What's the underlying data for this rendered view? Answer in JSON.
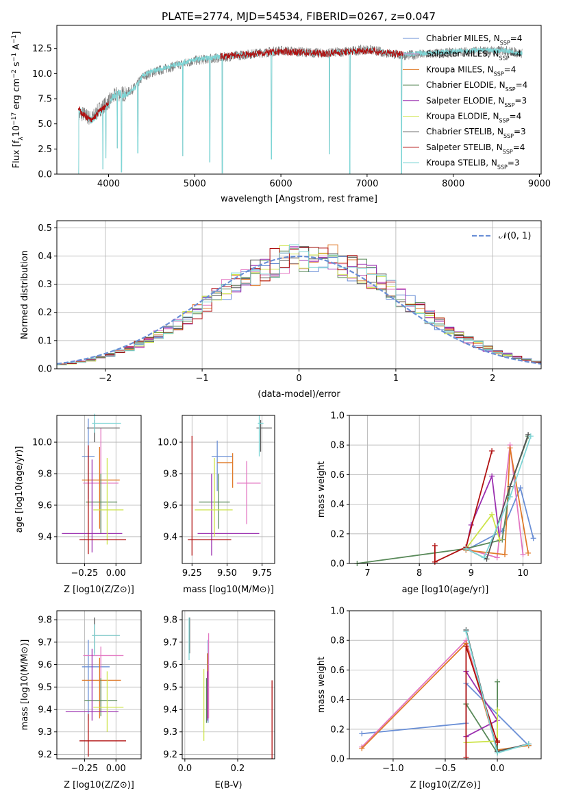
{
  "figure": {
    "title": "PLATE=2774, MJD=54534, FIBERID=0267, z=0.047"
  },
  "legend_entries": [
    {
      "label": "Chabrier MILES, N",
      "sub": "SSP",
      "tail": "=4",
      "color": "#6a8fd6"
    },
    {
      "label": "Salpeter MILES, N",
      "sub": "SSP",
      "tail": "=4",
      "color": "#e377c2"
    },
    {
      "label": "Kroupa MILES, N",
      "sub": "SSP",
      "tail": "=4",
      "color": "#e07b2a"
    },
    {
      "label": "Chabrier ELODIE, N",
      "sub": "SSP",
      "tail": "=4",
      "color": "#5a8a5a"
    },
    {
      "label": "Salpeter ELODIE, N",
      "sub": "SSP",
      "tail": "=3",
      "color": "#9b30b0"
    },
    {
      "label": "Kroupa ELODIE, N",
      "sub": "SSP",
      "tail": "=4",
      "color": "#cde44a"
    },
    {
      "label": "Chabrier STELIB, N",
      "sub": "SSP",
      "tail": "=3",
      "color": "#555555"
    },
    {
      "label": "Salpeter STELIB, N",
      "sub": "SSP",
      "tail": "=4",
      "color": "#b01010"
    },
    {
      "label": "Kroupa STELIB, N",
      "sub": "SSP",
      "tail": "=3",
      "color": "#7fd6d6"
    }
  ],
  "chart_data": [
    {
      "type": "line",
      "id": "spectrum",
      "title": "PLATE=2774, MJD=54534, FIBERID=0267, z=0.047",
      "xlabel": "wavelength [Angstrom, rest frame]",
      "ylabel": "Flux [f",
      "ylabel_parts": [
        "Flux [f",
        "λ",
        "10",
        "−17",
        " erg cm",
        "−2",
        " s",
        "−1",
        " A",
        "−1",
        "]"
      ],
      "xlim": [
        3400,
        9020
      ],
      "ylim": [
        0,
        14.8
      ],
      "xticks": [
        "4000",
        "5000",
        "6000",
        "7000",
        "8000",
        "9000"
      ],
      "yticks": [
        "0.0",
        "2.5",
        "5.0",
        "7.5",
        "10.0",
        "12.5"
      ],
      "series": [
        {
          "name": "data",
          "color": "#808080",
          "x": [
            3650,
            3700,
            3800,
            3900,
            4000,
            4100,
            4200,
            4300,
            4400,
            4500,
            4700,
            5000,
            5300,
            5600,
            6000,
            6500,
            7000,
            7400,
            7800,
            8200,
            8600,
            8800
          ],
          "y": [
            5.8,
            6.0,
            5.5,
            6.5,
            7.2,
            8.0,
            8.0,
            8.6,
            9.7,
            10.1,
            10.6,
            11.3,
            11.6,
            11.9,
            12.3,
            12.0,
            12.4,
            11.8,
            12.0,
            12.2,
            12.3,
            12.0
          ]
        },
        {
          "name": "model",
          "color": "#7fd6d6",
          "x": [
            3650,
            3700,
            3800,
            3900,
            4000,
            4100,
            4200,
            4300,
            4400,
            4500,
            4700,
            5000,
            5300,
            5600,
            6000,
            6500,
            7000,
            7400,
            7800,
            8200,
            8600,
            8800
          ],
          "y": [
            6.5,
            6.0,
            5.3,
            6.3,
            7.0,
            8.2,
            7.8,
            8.5,
            9.8,
            10.2,
            10.7,
            11.4,
            11.7,
            11.9,
            12.2,
            12.0,
            12.3,
            11.9,
            12.1,
            12.3,
            12.3,
            12.0
          ]
        }
      ]
    },
    {
      "type": "histogram",
      "id": "residuals",
      "xlabel": "(data-model)/error",
      "ylabel": "Normed distribution",
      "xlim": [
        -2.5,
        2.5
      ],
      "ylim": [
        0,
        0.525
      ],
      "xticks": [
        "−2",
        "−1",
        "0",
        "1",
        "2"
      ],
      "yticks": [
        "0.0",
        "0.1",
        "0.2",
        "0.3",
        "0.4",
        "0.5"
      ],
      "legend": "𝒩(0, 1)",
      "gaussian": {
        "mu": 0,
        "sigma": 1,
        "color": "#6a8fd6"
      }
    },
    {
      "type": "scatter",
      "id": "age-vs-Z",
      "xlabel": "Z [log10(Z/Z⊙)]",
      "ylabel": "age  [log10(age/yr)]",
      "xlim": [
        -0.47,
        0.2
      ],
      "ylim": [
        9.23,
        10.17
      ],
      "xticks": [
        "−0.25",
        "0.00"
      ],
      "yticks": [
        "9.4",
        "9.6",
        "9.8",
        "10.0"
      ],
      "points": [
        {
          "x": -0.22,
          "y": 9.91,
          "xerr": [
            0.05,
            0.05
          ],
          "yerr": [
            0.27,
            0.24
          ],
          "color": "#6a8fd6"
        },
        {
          "x": -0.12,
          "y": 9.74,
          "xerr": [
            0.14,
            0.14
          ],
          "yerr": [
            0.31,
            0.35
          ],
          "color": "#e377c2"
        },
        {
          "x": -0.13,
          "y": 9.76,
          "xerr": [
            0.14,
            0.16
          ],
          "yerr": [
            0.31,
            0.21
          ],
          "color": "#e07b2a"
        },
        {
          "x": -0.12,
          "y": 9.62,
          "xerr": [
            0.12,
            0.13
          ],
          "yerr": [
            0.2,
            0.18
          ],
          "color": "#5a8a5a"
        },
        {
          "x": -0.19,
          "y": 9.42,
          "xerr": [
            0.24,
            0.24
          ],
          "yerr": [
            0.12,
            0.47
          ],
          "color": "#9b30b0"
        },
        {
          "x": -0.07,
          "y": 9.57,
          "xerr": [
            0.11,
            0.13
          ],
          "yerr": [
            0.22,
            0.33
          ],
          "color": "#cde44a"
        },
        {
          "x": -0.17,
          "y": 10.09,
          "xerr": [
            0.06,
            0.2
          ],
          "yerr": [
            0.09,
            0.05
          ],
          "color": "#555555"
        },
        {
          "x": -0.22,
          "y": 9.38,
          "xerr": [
            0.07,
            0.3
          ],
          "yerr": [
            0.09,
            0.6
          ],
          "color": "#b01010"
        },
        {
          "x": -0.17,
          "y": 10.12,
          "xerr": [
            0.02,
            0.21
          ],
          "yerr": [
            0.06,
            0.06
          ],
          "color": "#7fd6d6"
        }
      ]
    },
    {
      "type": "scatter",
      "id": "age-vs-mass",
      "xlabel": "mass [log10(M/M⊙)]",
      "ylabel": "",
      "xlim": [
        9.18,
        9.84
      ],
      "ylim": [
        9.23,
        10.17
      ],
      "xticks": [
        "9.25",
        "9.50",
        "9.75"
      ],
      "yticks": [
        "9.4",
        "9.6",
        "9.8",
        "10.0"
      ],
      "points": [
        {
          "x": 9.43,
          "y": 9.91,
          "xerr": [
            0.04,
            0.11
          ],
          "yerr": [
            0.22,
            0.1
          ],
          "color": "#6a8fd6"
        },
        {
          "x": 9.64,
          "y": 9.74,
          "xerr": [
            0.07,
            0.1
          ],
          "yerr": [
            0.26,
            0.14
          ],
          "color": "#e377c2"
        },
        {
          "x": 9.54,
          "y": 9.87,
          "xerr": [
            0.11,
            0.0
          ],
          "yerr": [
            0.16,
            0.06
          ],
          "color": "#e07b2a"
        },
        {
          "x": 9.44,
          "y": 9.62,
          "xerr": [
            0.14,
            0.08
          ],
          "yerr": [
            0.17,
            0.18
          ],
          "color": "#5a8a5a"
        },
        {
          "x": 9.39,
          "y": 9.42,
          "xerr": [
            0.1,
            0.34
          ],
          "yerr": [
            0.14,
            0.38
          ],
          "color": "#9b30b0"
        },
        {
          "x": 9.41,
          "y": 9.57,
          "xerr": [
            0.14,
            0.13
          ],
          "yerr": [
            0.17,
            0.33
          ],
          "color": "#cde44a"
        },
        {
          "x": 9.74,
          "y": 10.09,
          "xerr": [
            0.03,
            0.08
          ],
          "yerr": [
            0.15,
            0.05
          ],
          "color": "#555555"
        },
        {
          "x": 9.25,
          "y": 9.38,
          "xerr": [
            0.03,
            0.28
          ],
          "yerr": [
            0.1,
            0.66
          ],
          "color": "#b01010"
        },
        {
          "x": 9.73,
          "y": 10.12,
          "xerr": [
            0.01,
            0.03
          ],
          "yerr": [
            0.21,
            0.05
          ],
          "color": "#7fd6d6"
        }
      ]
    },
    {
      "type": "line",
      "id": "weight-vs-age",
      "xlabel": "age  [log10(age/yr)]",
      "ylabel": "mass weight",
      "xlim": [
        6.65,
        10.35
      ],
      "ylim": [
        0,
        1.0
      ],
      "xticks": [
        "7",
        "8",
        "9",
        "10"
      ],
      "yticks": [
        "0.0",
        "0.2",
        "0.4",
        "0.6",
        "0.8",
        "1.0"
      ],
      "series": [
        {
          "color": "#6a8fd6",
          "x": [
            8.9,
            9.6,
            9.95,
            10.2
          ],
          "y": [
            0.09,
            0.22,
            0.51,
            0.17
          ]
        },
        {
          "color": "#e377c2",
          "x": [
            8.9,
            9.5,
            9.75,
            10.0
          ],
          "y": [
            0.1,
            0.04,
            0.8,
            0.06
          ]
        },
        {
          "color": "#e07b2a",
          "x": [
            8.9,
            9.65,
            9.75,
            10.1
          ],
          "y": [
            0.09,
            0.06,
            0.78,
            0.07
          ]
        },
        {
          "color": "#5a8a5a",
          "x": [
            6.8,
            8.9,
            9.6,
            9.75,
            10.1
          ],
          "y": [
            0.0,
            0.1,
            0.16,
            0.52,
            0.86
          ]
        },
        {
          "color": "#9b30b0",
          "x": [
            8.9,
            9.0,
            9.4,
            9.55
          ],
          "y": [
            0.1,
            0.26,
            0.59,
            0.16
          ]
        },
        {
          "color": "#cde44a",
          "x": [
            8.9,
            9.4,
            9.55
          ],
          "y": [
            0.1,
            0.33,
            0.16
          ]
        },
        {
          "color": "#555555",
          "x": [
            8.9,
            9.3,
            9.75,
            10.1
          ],
          "y": [
            0.1,
            0.03,
            0.52,
            0.87
          ]
        },
        {
          "color": "#b01010",
          "x": [
            8.3,
            8.3,
            8.9,
            9.4
          ],
          "y": [
            0.12,
            0.01,
            0.11,
            0.76
          ]
        },
        {
          "color": "#7fd6d6",
          "x": [
            8.9,
            9.25,
            9.75,
            10.15
          ],
          "y": [
            0.1,
            0.04,
            0.45,
            0.86
          ]
        }
      ]
    },
    {
      "type": "scatter",
      "id": "mass-vs-Z",
      "xlabel": "Z [log10(Z/Z⊙)]",
      "ylabel": "mass [log10(M/M⊙)]",
      "xlim": [
        -0.47,
        0.2
      ],
      "ylim": [
        9.18,
        9.84
      ],
      "xticks": [
        "−0.25",
        "0.00"
      ],
      "yticks": [
        "9.2",
        "9.3",
        "9.4",
        "9.5",
        "9.6",
        "9.7",
        "9.8"
      ],
      "points": [
        {
          "x": -0.22,
          "y": 9.59,
          "xerr": [
            0.05,
            0.17
          ],
          "yerr": [
            0.24,
            0.12
          ],
          "color": "#6a8fd6"
        },
        {
          "x": -0.12,
          "y": 9.64,
          "xerr": [
            0.14,
            0.18
          ],
          "yerr": [
            0.25,
            0.04
          ],
          "color": "#e377c2"
        },
        {
          "x": -0.13,
          "y": 9.53,
          "xerr": [
            0.14,
            0.17
          ],
          "yerr": [
            0.17,
            0.1
          ],
          "color": "#e07b2a"
        },
        {
          "x": -0.12,
          "y": 9.44,
          "xerr": [
            0.13,
            0.13
          ],
          "yerr": [
            0.07,
            0.1
          ],
          "color": "#5a8a5a"
        },
        {
          "x": -0.19,
          "y": 9.39,
          "xerr": [
            0.21,
            0.21
          ],
          "yerr": [
            0.04,
            0.28
          ],
          "color": "#9b30b0"
        },
        {
          "x": -0.07,
          "y": 9.41,
          "xerr": [
            0.11,
            0.13
          ],
          "yerr": [
            0.11,
            0.16
          ],
          "color": "#cde44a"
        },
        {
          "x": -0.17,
          "y": 9.73,
          "xerr": [
            0.02,
            0.2
          ],
          "yerr": [
            0.08,
            0.08
          ],
          "color": "#555555"
        },
        {
          "x": -0.22,
          "y": 9.26,
          "xerr": [
            0.07,
            0.3
          ],
          "yerr": [
            0.07,
            0.12
          ],
          "color": "#b01010"
        },
        {
          "x": -0.17,
          "y": 9.73,
          "xerr": [
            0.02,
            0.2
          ],
          "yerr": [
            0.09,
            0.05
          ],
          "color": "#7fd6d6"
        }
      ]
    },
    {
      "type": "scatter",
      "id": "mass-vs-ebv",
      "xlabel": "E(B-V)",
      "ylabel": "",
      "xlim": [
        -0.01,
        0.34
      ],
      "ylim": [
        9.18,
        9.84
      ],
      "xticks": [
        "0.0",
        "0.2"
      ],
      "yticks": [
        "9.2",
        "9.3",
        "9.4",
        "9.5",
        "9.6",
        "9.7",
        "9.8"
      ],
      "points": [
        {
          "x": 0.088,
          "y": 9.59,
          "yerr": [
            0.25,
            0.12
          ],
          "color": "#6a8fd6"
        },
        {
          "x": 0.09,
          "y": 9.64,
          "yerr": [
            0.28,
            0.1
          ],
          "color": "#e377c2"
        },
        {
          "x": 0.085,
          "y": 9.53,
          "yerr": [
            0.17,
            0.12
          ],
          "color": "#e07b2a"
        },
        {
          "x": 0.082,
          "y": 9.44,
          "yerr": [
            0.1,
            0.1
          ],
          "color": "#5a8a5a"
        },
        {
          "x": 0.086,
          "y": 9.45,
          "yerr": [
            0.1,
            0.12
          ],
          "color": "#9b30b0"
        },
        {
          "x": 0.072,
          "y": 9.41,
          "yerr": [
            0.15,
            0.17
          ],
          "color": "#cde44a"
        },
        {
          "x": 0.018,
          "y": 9.73,
          "yerr": [
            0.08,
            0.08
          ],
          "color": "#555555"
        },
        {
          "x": 0.33,
          "y": 9.38,
          "yerr": [
            0.2,
            0.15
          ],
          "color": "#b01010"
        },
        {
          "x": 0.016,
          "y": 9.72,
          "yerr": [
            0.1,
            0.09
          ],
          "color": "#7fd6d6"
        }
      ]
    },
    {
      "type": "line",
      "id": "weight-vs-Z",
      "xlabel": "Z [log10(Z/Z⊙)]",
      "ylabel": "mass weight",
      "xlim": [
        -1.42,
        0.42
      ],
      "ylim": [
        0,
        1.0
      ],
      "xticks": [
        "−1.0",
        "−0.5",
        "0.0"
      ],
      "yticks": [
        "0.0",
        "0.2",
        "0.4",
        "0.6",
        "0.8",
        "1.0"
      ],
      "series": [
        {
          "color": "#6a8fd6",
          "x": [
            -1.3,
            -0.3,
            -0.3,
            0.3
          ],
          "y": [
            0.17,
            0.24,
            0.51,
            0.09
          ]
        },
        {
          "color": "#e377c2",
          "x": [
            -1.3,
            -0.3,
            0.0,
            0.3
          ],
          "y": [
            0.08,
            0.8,
            0.05,
            0.1
          ]
        },
        {
          "color": "#e07b2a",
          "x": [
            -1.3,
            -0.3,
            0.0,
            0.3
          ],
          "y": [
            0.07,
            0.78,
            0.06,
            0.09
          ]
        },
        {
          "color": "#5a8a5a",
          "x": [
            -0.3,
            0.0,
            0.0
          ],
          "y": [
            0.37,
            0.04,
            0.52
          ]
        },
        {
          "color": "#9b30b0",
          "x": [
            -0.3,
            0.0,
            -0.3
          ],
          "y": [
            0.15,
            0.26,
            0.59
          ]
        },
        {
          "color": "#cde44a",
          "x": [
            -0.3,
            0.0,
            0.0
          ],
          "y": [
            0.11,
            0.12,
            0.33
          ]
        },
        {
          "color": "#555555",
          "x": [
            -0.3,
            0.0,
            0.3
          ],
          "y": [
            0.87,
            0.05,
            0.1
          ]
        },
        {
          "color": "#b01010",
          "x": [
            -0.3,
            -0.3,
            0.0,
            0.0
          ],
          "y": [
            0.01,
            0.76,
            0.11,
            0.12
          ]
        },
        {
          "color": "#7fd6d6",
          "x": [
            -0.3,
            0.0,
            0.3
          ],
          "y": [
            0.86,
            0.04,
            0.1
          ]
        }
      ]
    }
  ]
}
